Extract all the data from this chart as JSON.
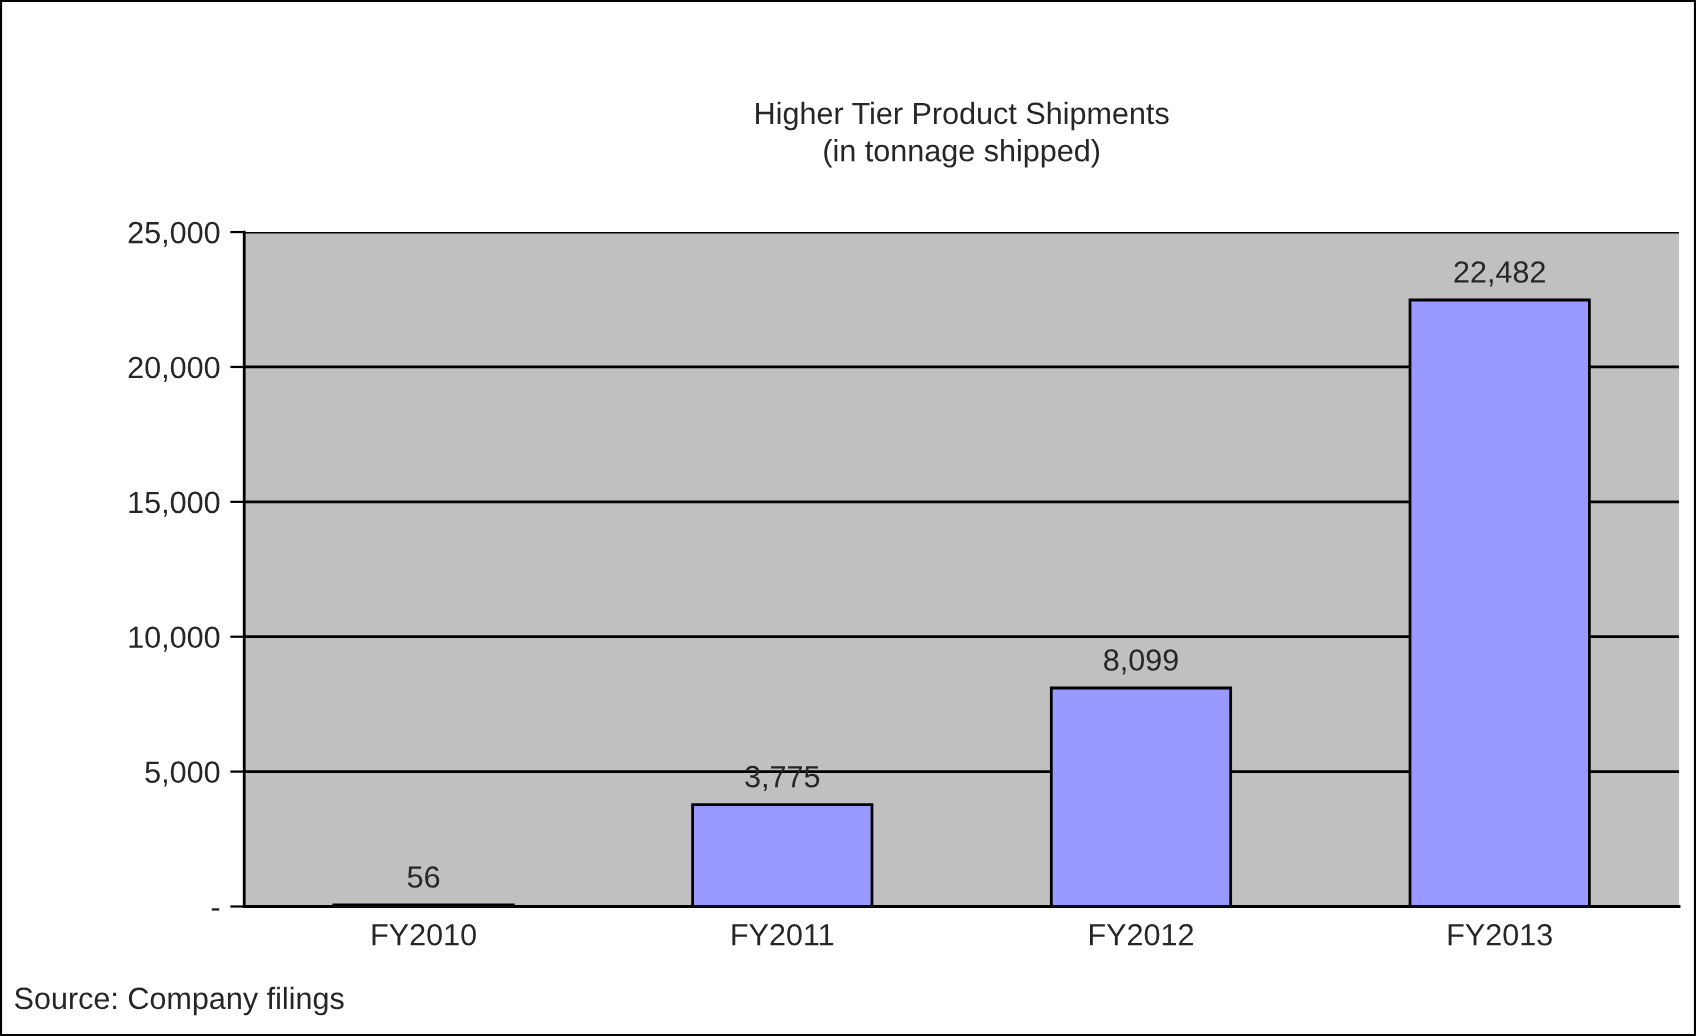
{
  "chart_data": {
    "type": "bar",
    "title": "Higher Tier Product Shipments\n(in tonnage shipped)",
    "categories": [
      "FY2010",
      "FY2011",
      "FY2012",
      "FY2013"
    ],
    "values": [
      56,
      3775,
      8099,
      22482
    ],
    "value_labels": [
      "56",
      "3,775",
      "8,099",
      "22,482"
    ],
    "color": "#9999ff",
    "ylim": [
      0,
      25000
    ],
    "yticks": [
      {
        "value": 0,
        "label": "-"
      },
      {
        "value": 5000,
        "label": "5,000"
      },
      {
        "value": 10000,
        "label": "10,000"
      },
      {
        "value": 15000,
        "label": "15,000"
      },
      {
        "value": 20000,
        "label": "20,000"
      },
      {
        "value": 25000,
        "label": "25,000"
      }
    ],
    "grid": "y",
    "annotations": [
      "Source: Company filings"
    ]
  }
}
